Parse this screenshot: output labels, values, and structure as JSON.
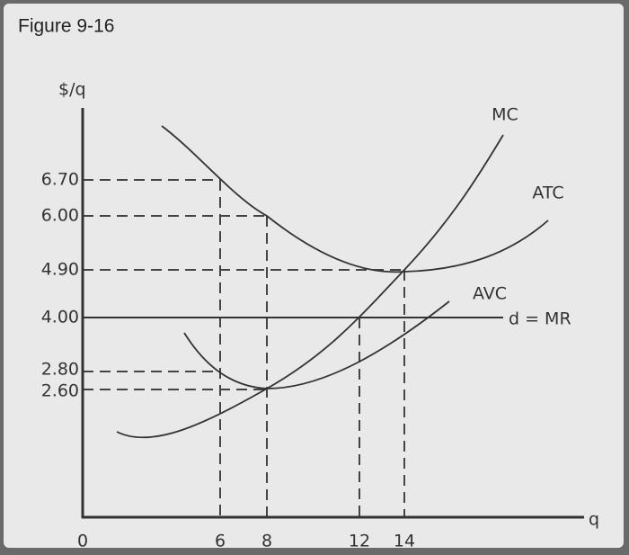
{
  "header": {
    "title": "Figure 9-16"
  },
  "axes": {
    "y_label": "$/q",
    "x_label": "q",
    "origin": "0"
  },
  "y_ticks": [
    "6.70",
    "6.00",
    "4.90",
    "4.00",
    "2.80",
    "2.60"
  ],
  "x_ticks": [
    "6",
    "8",
    "12",
    "14"
  ],
  "curves": {
    "mc": "MC",
    "atc": "ATC",
    "avc": "AVC",
    "mr": "d = MR"
  }
}
